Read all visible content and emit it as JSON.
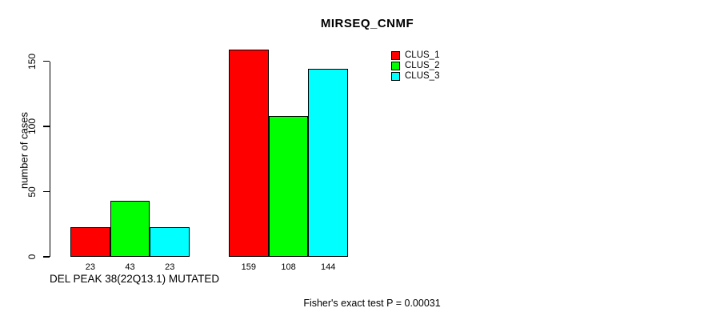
{
  "window": {
    "background": "#ffffff",
    "text_color": "#000000"
  },
  "chart_data": {
    "type": "bar",
    "title": "MIRSEQ_CNMF",
    "ylabel": "number of cases",
    "xlabel": "DEL PEAK 38(22Q13.1) MUTATED",
    "annotation": "Fisher's exact test P = 0.00031",
    "yticks": [
      0,
      50,
      100,
      150
    ],
    "ylim": [
      0,
      160
    ],
    "grid": false,
    "legend_position": "top-right",
    "bar_value_labels_shown": true,
    "n_groups": 2,
    "series": [
      {
        "name": "CLUS_1",
        "color": "#ff0000",
        "values": [
          23,
          159
        ]
      },
      {
        "name": "CLUS_2",
        "color": "#00ff00",
        "values": [
          43,
          108
        ]
      },
      {
        "name": "CLUS_3",
        "color": "#00ffff",
        "values": [
          23,
          144
        ]
      }
    ],
    "bar_border_color": "#000000"
  }
}
